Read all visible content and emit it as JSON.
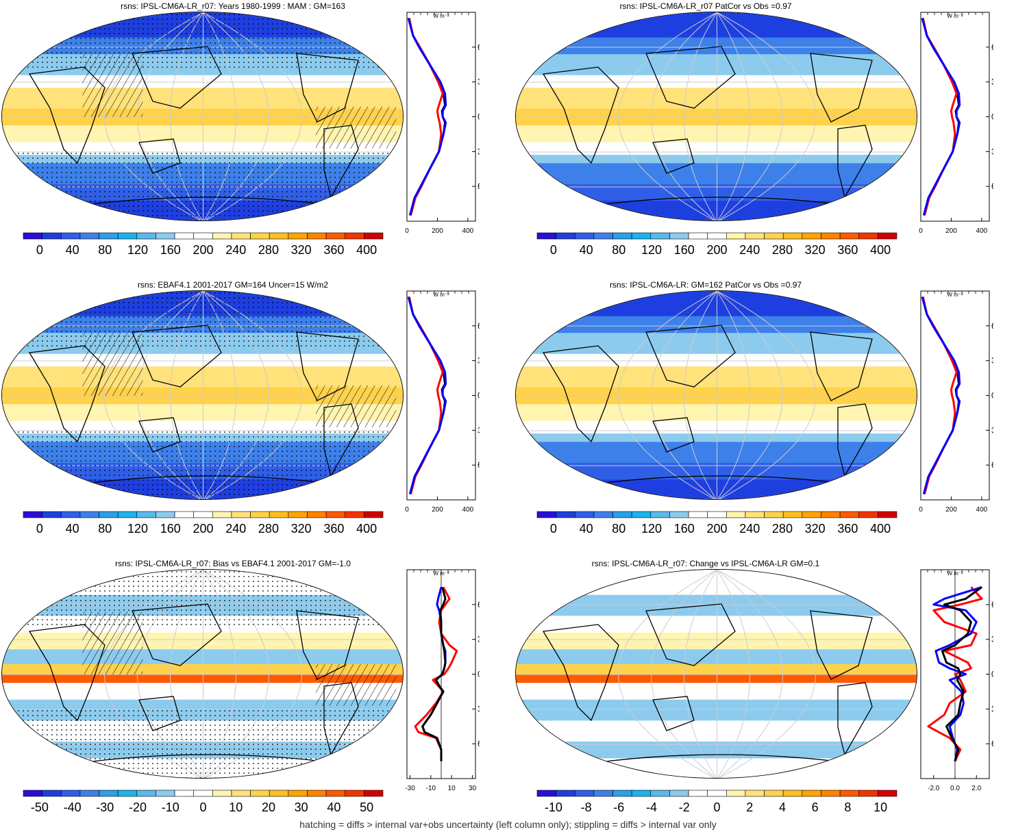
{
  "footer": "hatching = diffs > internal var+obs uncertainty (left column only); stippling = diffs > internal var only",
  "profile_lat_ticks": [
    "60N",
    "30N",
    "0",
    "30S",
    "60S"
  ],
  "profile_unit_label": "W m⁻²",
  "colors": {
    "obs_line": "#ff0000",
    "model_line": "#0000ff",
    "current_line": "#000000"
  },
  "chart_data": [
    {
      "type": "heatmap",
      "title": "rsns: IPSL-CM6A-LR_r07: Years 1980-1999 : MAM : GM=163",
      "colorbar_ticks": [
        "0",
        "40",
        "80",
        "120",
        "160",
        "200",
        "240",
        "280",
        "320",
        "360",
        "400"
      ],
      "colorbar_range": [
        -20,
        420
      ],
      "palette": "abs",
      "pattern": "hatch-stipple",
      "profile": {
        "xticks": [
          "0",
          "200",
          "400"
        ],
        "xlim": [
          0,
          450
        ],
        "lat": [
          -90,
          90
        ],
        "lines": [
          {
            "color": "black",
            "lat": [
              -85,
              -70,
              -60,
              -45,
              -30,
              -15,
              -5,
              0,
              5,
              10,
              20,
              30,
              45,
              60,
              70,
              85
            ],
            "values": [
              20,
              50,
              90,
              150,
              210,
              240,
              250,
              235,
              230,
              250,
              240,
              210,
              150,
              80,
              40,
              10
            ]
          },
          {
            "color": "red",
            "lat": [
              -85,
              -70,
              -60,
              -45,
              -30,
              -15,
              -5,
              0,
              5,
              10,
              20,
              30,
              45,
              60,
              70,
              85
            ],
            "values": [
              25,
              55,
              95,
              150,
              210,
              225,
              215,
              205,
              200,
              210,
              235,
              205,
              150,
              85,
              40,
              15
            ]
          },
          {
            "color": "blue",
            "lat": [
              -85,
              -70,
              -60,
              -45,
              -30,
              -15,
              -5,
              0,
              5,
              10,
              20,
              30,
              45,
              60,
              70,
              85
            ],
            "values": [
              20,
              50,
              90,
              150,
              210,
              240,
              255,
              235,
              235,
              255,
              250,
              220,
              150,
              80,
              40,
              10
            ]
          }
        ]
      }
    },
    {
      "type": "heatmap",
      "title": "rsns: IPSL-CM6A-LR_r07 PatCor vs Obs =0.97",
      "colorbar_ticks": [
        "0",
        "40",
        "80",
        "120",
        "160",
        "200",
        "240",
        "280",
        "320",
        "360",
        "400"
      ],
      "colorbar_range": [
        -20,
        420
      ],
      "palette": "abs",
      "pattern": "none",
      "profile": {
        "xticks": [
          "0",
          "200",
          "400"
        ],
        "xlim": [
          0,
          450
        ],
        "lat": [
          -90,
          90
        ],
        "lines": [
          {
            "color": "black",
            "lat": [
              -85,
              -70,
              -60,
              -45,
              -30,
              -15,
              -5,
              0,
              5,
              10,
              20,
              30,
              45,
              60,
              70,
              85
            ],
            "values": [
              20,
              50,
              90,
              150,
              210,
              240,
              250,
              235,
              230,
              250,
              240,
              210,
              150,
              80,
              40,
              10
            ]
          },
          {
            "color": "red",
            "lat": [
              -85,
              -70,
              -60,
              -45,
              -30,
              -15,
              -5,
              0,
              5,
              10,
              20,
              30,
              45,
              60,
              70,
              85
            ],
            "values": [
              25,
              55,
              95,
              150,
              210,
              225,
              215,
              205,
              200,
              210,
              235,
              205,
              150,
              85,
              40,
              15
            ]
          },
          {
            "color": "blue",
            "lat": [
              -85,
              -70,
              -60,
              -45,
              -30,
              -15,
              -5,
              0,
              5,
              10,
              20,
              30,
              45,
              60,
              70,
              85
            ],
            "values": [
              20,
              50,
              90,
              150,
              210,
              240,
              255,
              235,
              235,
              255,
              250,
              220,
              150,
              80,
              40,
              10
            ]
          }
        ]
      }
    },
    {
      "type": "heatmap",
      "title": "rsns: EBAF4.1 2001-2017 GM=164 Uncer=15 W/m2",
      "colorbar_ticks": [
        "0",
        "40",
        "80",
        "120",
        "160",
        "200",
        "240",
        "280",
        "320",
        "360",
        "400"
      ],
      "colorbar_range": [
        -20,
        420
      ],
      "palette": "abs",
      "pattern": "hatch-stipple",
      "profile": {
        "xticks": [
          "0",
          "200",
          "400"
        ],
        "xlim": [
          0,
          450
        ],
        "lat": [
          -90,
          90
        ],
        "lines": [
          {
            "color": "black",
            "lat": [
              -85,
              -70,
              -60,
              -45,
              -30,
              -15,
              -5,
              0,
              5,
              10,
              20,
              30,
              45,
              60,
              70,
              85
            ],
            "values": [
              20,
              50,
              90,
              150,
              210,
              240,
              250,
              235,
              230,
              250,
              240,
              210,
              150,
              80,
              40,
              10
            ]
          },
          {
            "color": "red",
            "lat": [
              -85,
              -70,
              -60,
              -45,
              -30,
              -15,
              -5,
              0,
              5,
              10,
              20,
              30,
              45,
              60,
              70,
              85
            ],
            "values": [
              25,
              55,
              95,
              150,
              210,
              225,
              215,
              205,
              200,
              210,
              235,
              205,
              150,
              85,
              40,
              15
            ]
          },
          {
            "color": "blue",
            "lat": [
              -85,
              -70,
              -60,
              -45,
              -30,
              -15,
              -5,
              0,
              5,
              10,
              20,
              30,
              45,
              60,
              70,
              85
            ],
            "values": [
              20,
              50,
              90,
              150,
              210,
              240,
              255,
              235,
              235,
              255,
              250,
              220,
              150,
              80,
              40,
              10
            ]
          }
        ]
      }
    },
    {
      "type": "heatmap",
      "title": "rsns: IPSL-CM6A-LR: GM=162 PatCor vs Obs =0.97",
      "colorbar_ticks": [
        "0",
        "40",
        "80",
        "120",
        "160",
        "200",
        "240",
        "280",
        "320",
        "360",
        "400"
      ],
      "colorbar_range": [
        -20,
        420
      ],
      "palette": "abs",
      "pattern": "none",
      "profile": {
        "xticks": [
          "0",
          "200",
          "400"
        ],
        "xlim": [
          0,
          450
        ],
        "lat": [
          -90,
          90
        ],
        "lines": [
          {
            "color": "black",
            "lat": [
              -85,
              -70,
              -60,
              -45,
              -30,
              -15,
              -5,
              0,
              5,
              10,
              20,
              30,
              45,
              60,
              70,
              85
            ],
            "values": [
              20,
              50,
              90,
              150,
              210,
              240,
              250,
              235,
              230,
              250,
              240,
              210,
              150,
              80,
              40,
              10
            ]
          },
          {
            "color": "red",
            "lat": [
              -85,
              -70,
              -60,
              -45,
              -30,
              -15,
              -5,
              0,
              5,
              10,
              20,
              30,
              45,
              60,
              70,
              85
            ],
            "values": [
              25,
              55,
              95,
              150,
              210,
              225,
              215,
              205,
              200,
              210,
              235,
              205,
              150,
              85,
              40,
              15
            ]
          },
          {
            "color": "blue",
            "lat": [
              -85,
              -70,
              -60,
              -45,
              -30,
              -15,
              -5,
              0,
              5,
              10,
              20,
              30,
              45,
              60,
              70,
              85
            ],
            "values": [
              20,
              50,
              90,
              150,
              210,
              240,
              255,
              235,
              235,
              255,
              250,
              220,
              150,
              80,
              40,
              10
            ]
          }
        ]
      }
    },
    {
      "type": "heatmap",
      "title": "rsns: IPSL-CM6A-LR_r07: Bias vs EBAF4.1 2001-2017 GM=-1.0",
      "colorbar_ticks": [
        "-50",
        "-40",
        "-30",
        "-20",
        "-10",
        "0",
        "10",
        "20",
        "30",
        "40",
        "50"
      ],
      "colorbar_range": [
        -55,
        55
      ],
      "palette": "bias",
      "pattern": "hatch-stipple",
      "profile": {
        "xticks": [
          "-30",
          "-10",
          "10",
          "30"
        ],
        "xlim": [
          -33,
          33
        ],
        "lat": [
          -90,
          90
        ],
        "lines": [
          {
            "color": "red",
            "lat": [
              -75,
              -65,
              -55,
              -50,
              -45,
              -35,
              -25,
              -15,
              -10,
              -5,
              0,
              5,
              10,
              20,
              25,
              35,
              45,
              55,
              60,
              65,
              75
            ],
            "values": [
              0,
              0,
              -5,
              -22,
              -25,
              -14,
              -5,
              2,
              -3,
              -8,
              3,
              7,
              10,
              15,
              8,
              0,
              -2,
              0,
              4,
              8,
              2
            ]
          },
          {
            "color": "blue",
            "lat": [
              -75,
              -65,
              -55,
              -50,
              -45,
              -35,
              -25,
              -15,
              -10,
              -5,
              0,
              5,
              10,
              20,
              25,
              35,
              45,
              55,
              60,
              65,
              75
            ],
            "values": [
              0,
              0,
              -4,
              -16,
              -18,
              -10,
              -4,
              2,
              -2,
              -5,
              1,
              3,
              4,
              4,
              2,
              0,
              0,
              -2,
              -4,
              -3,
              0
            ]
          },
          {
            "color": "black",
            "lat": [
              -75,
              -65,
              -55,
              -50,
              -45,
              -35,
              -25,
              -15,
              -10,
              -5,
              0,
              5,
              10,
              20,
              25,
              35,
              45,
              55,
              60,
              65,
              75
            ],
            "values": [
              0,
              0,
              -4,
              -16,
              -18,
              -10,
              -4,
              2,
              -2,
              -5,
              1,
              3,
              4,
              3,
              2,
              0,
              0,
              -1,
              2,
              4,
              1
            ]
          }
        ]
      }
    },
    {
      "type": "heatmap",
      "title": "rsns: IPSL-CM6A-LR_r07: Change vs IPSL-CM6A-LR GM=0.1",
      "colorbar_ticks": [
        "-10",
        "-8",
        "-6",
        "-4",
        "-2",
        "0",
        "2",
        "4",
        "6",
        "8",
        "10"
      ],
      "colorbar_range": [
        -11,
        11
      ],
      "palette": "bias",
      "pattern": "none",
      "profile": {
        "xticks": [
          "-2.0",
          "0.0",
          "2.0"
        ],
        "xlim": [
          -3.2,
          3.2
        ],
        "lat": [
          -90,
          90
        ],
        "lines": [
          {
            "color": "red",
            "lat": [
              -75,
              -65,
              -55,
              -45,
              -35,
              -25,
              -15,
              -5,
              0,
              5,
              10,
              20,
              25,
              35,
              45,
              55,
              60,
              65,
              75
            ],
            "values": [
              0,
              0.5,
              -0.5,
              -2.5,
              -1,
              -0.5,
              1,
              0.5,
              0,
              1.5,
              1.2,
              -1,
              1.5,
              2,
              -1,
              -2,
              0.5,
              2.5,
              1.5
            ]
          },
          {
            "color": "blue",
            "lat": [
              -75,
              -65,
              -55,
              -45,
              -35,
              -25,
              -15,
              -5,
              0,
              5,
              10,
              20,
              25,
              35,
              45,
              55,
              60,
              65,
              75
            ],
            "values": [
              0,
              0.2,
              -0.2,
              -0.5,
              0.5,
              0.8,
              0.6,
              -0.5,
              1,
              -0.5,
              -1.5,
              -1.8,
              -0.5,
              1.5,
              2,
              1,
              -2,
              -1,
              2.5
            ]
          },
          {
            "color": "black",
            "lat": [
              -75,
              -65,
              -55,
              -45,
              -35,
              -25,
              -15,
              -5,
              0,
              5,
              10,
              20,
              25,
              35,
              45,
              55,
              60,
              65,
              75
            ],
            "values": [
              0,
              0.3,
              -0.3,
              -0.8,
              0.3,
              0.5,
              0.8,
              0.2,
              0.5,
              0.3,
              -0.8,
              -1.2,
              0,
              1.2,
              1.5,
              0.5,
              -1,
              1,
              2.5
            ]
          }
        ]
      }
    }
  ]
}
